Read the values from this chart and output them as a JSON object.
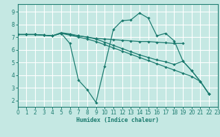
{
  "xlabel": "Humidex (Indice chaleur)",
  "bg_color": "#c5e8e3",
  "grid_color": "#ffffff",
  "line_color": "#1a7a6e",
  "xlim": [
    0,
    23
  ],
  "ylim": [
    1.5,
    9.6
  ],
  "xticks": [
    0,
    1,
    2,
    3,
    4,
    5,
    6,
    7,
    8,
    9,
    10,
    11,
    12,
    13,
    14,
    15,
    16,
    17,
    18,
    19,
    20,
    21,
    22,
    23
  ],
  "yticks": [
    2,
    3,
    4,
    5,
    6,
    7,
    8,
    9
  ],
  "lines": [
    {
      "xy": [
        [
          0,
          7.2
        ],
        [
          1,
          7.2
        ],
        [
          2,
          7.2
        ],
        [
          3,
          7.15
        ],
        [
          4,
          7.1
        ],
        [
          5,
          7.3
        ],
        [
          6,
          6.5
        ],
        [
          7,
          3.6
        ],
        [
          8,
          2.85
        ],
        [
          9,
          1.85
        ],
        [
          10,
          4.7
        ],
        [
          11,
          7.6
        ],
        [
          12,
          8.3
        ],
        [
          13,
          8.35
        ],
        [
          14,
          8.9
        ],
        [
          15,
          8.5
        ],
        [
          16,
          7.1
        ],
        [
          17,
          7.3
        ],
        [
          18,
          6.7
        ],
        [
          19,
          5.1
        ],
        [
          20,
          4.35
        ],
        [
          21,
          3.5
        ],
        [
          22,
          2.5
        ]
      ]
    },
    {
      "xy": [
        [
          0,
          7.2
        ],
        [
          1,
          7.2
        ],
        [
          2,
          7.2
        ],
        [
          3,
          7.15
        ],
        [
          4,
          7.1
        ],
        [
          5,
          7.35
        ],
        [
          6,
          7.25
        ],
        [
          7,
          7.1
        ],
        [
          8,
          7.0
        ],
        [
          9,
          6.9
        ],
        [
          10,
          6.85
        ],
        [
          11,
          6.8
        ],
        [
          12,
          6.75
        ],
        [
          13,
          6.7
        ],
        [
          14,
          6.65
        ],
        [
          15,
          6.65
        ],
        [
          16,
          6.6
        ],
        [
          17,
          6.55
        ],
        [
          18,
          6.5
        ],
        [
          19,
          6.5
        ]
      ]
    },
    {
      "xy": [
        [
          0,
          7.2
        ],
        [
          1,
          7.2
        ],
        [
          2,
          7.2
        ],
        [
          3,
          7.15
        ],
        [
          4,
          7.1
        ],
        [
          5,
          7.3
        ],
        [
          6,
          7.2
        ],
        [
          7,
          7.1
        ],
        [
          8,
          7.0
        ],
        [
          9,
          6.85
        ],
        [
          10,
          6.6
        ],
        [
          11,
          6.35
        ],
        [
          12,
          6.1
        ],
        [
          13,
          5.85
        ],
        [
          14,
          5.6
        ],
        [
          15,
          5.4
        ],
        [
          16,
          5.2
        ],
        [
          17,
          5.05
        ],
        [
          18,
          4.85
        ],
        [
          19,
          5.1
        ],
        [
          20,
          4.35
        ],
        [
          21,
          3.5
        ],
        [
          22,
          2.5
        ]
      ]
    },
    {
      "xy": [
        [
          0,
          7.2
        ],
        [
          1,
          7.2
        ],
        [
          2,
          7.2
        ],
        [
          3,
          7.15
        ],
        [
          4,
          7.1
        ],
        [
          5,
          7.3
        ],
        [
          6,
          7.15
        ],
        [
          7,
          7.0
        ],
        [
          8,
          6.85
        ],
        [
          9,
          6.65
        ],
        [
          10,
          6.4
        ],
        [
          11,
          6.15
        ],
        [
          12,
          5.9
        ],
        [
          13,
          5.65
        ],
        [
          14,
          5.4
        ],
        [
          15,
          5.15
        ],
        [
          16,
          4.9
        ],
        [
          17,
          4.65
        ],
        [
          18,
          4.4
        ],
        [
          19,
          4.15
        ],
        [
          20,
          3.9
        ],
        [
          21,
          3.5
        ],
        [
          22,
          2.5
        ]
      ]
    }
  ]
}
